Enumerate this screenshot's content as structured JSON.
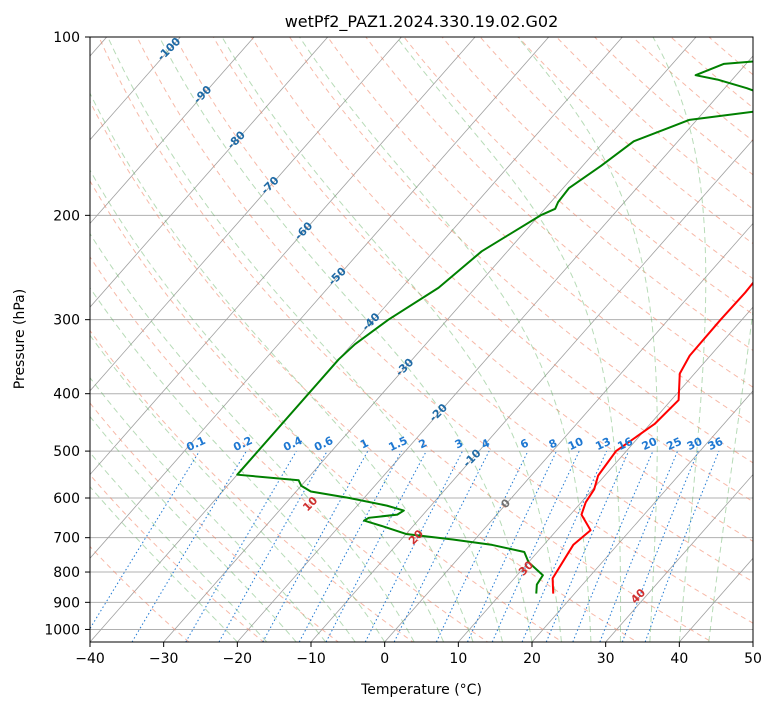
{
  "chart_data": {
    "type": "line",
    "title": "wetPf2_PAZ1.2024.330.19.02.G02",
    "xlabel": "Temperature (°C)",
    "ylabel": "Pressure (hPa)",
    "xlim": [
      -40,
      50
    ],
    "ylim": [
      1050,
      100
    ],
    "y_scale": "log",
    "grid": true,
    "x_ticks": [
      "−40",
      "−30",
      "−20",
      "−10",
      "0",
      "10",
      "20",
      "30",
      "40",
      "50"
    ],
    "x_tick_values": [
      -40,
      -30,
      -20,
      -10,
      0,
      10,
      20,
      30,
      40,
      50
    ],
    "y_ticks": [
      "100",
      "200",
      "300",
      "400",
      "500",
      "600",
      "700",
      "800",
      "900",
      "1000"
    ],
    "y_tick_values": [
      100,
      200,
      300,
      400,
      500,
      600,
      700,
      800,
      900,
      1000
    ],
    "colors": {
      "temperature": "#ff0000",
      "dewpoint": "#008000",
      "isotherm": "#a0a0a0",
      "dry_adiabat": "#f08060",
      "moist_adiabat": "#60b060",
      "mixing_ratio": "#1e78d2",
      "isotherm_label": "#1f6aa5",
      "dry_label": "#d03030",
      "zero_label": "#707070"
    },
    "series": [
      {
        "name": "temperature",
        "values": [
          {
            "p": 870,
            "t": 17.1
          },
          {
            "p": 820,
            "t": 15.2
          },
          {
            "p": 760,
            "t": 14.5
          },
          {
            "p": 720,
            "t": 14.0
          },
          {
            "p": 680,
            "t": 14.6
          },
          {
            "p": 640,
            "t": 11.5
          },
          {
            "p": 610,
            "t": 10.6
          },
          {
            "p": 580,
            "t": 10.2
          },
          {
            "p": 550,
            "t": 9.1
          },
          {
            "p": 500,
            "t": 8.6
          },
          {
            "p": 450,
            "t": 10.6
          },
          {
            "p": 410,
            "t": 11.0
          },
          {
            "p": 370,
            "t": 8.0
          },
          {
            "p": 345,
            "t": 7.2
          },
          {
            "p": 300,
            "t": 7.1
          },
          {
            "p": 270,
            "t": 7.2
          },
          {
            "p": 240,
            "t": 6.9
          },
          {
            "p": 215,
            "t": 6.4
          },
          {
            "p": 200,
            "t": 5.8
          },
          {
            "p": 185,
            "t": 6.3
          },
          {
            "p": 165,
            "t": 7.3
          },
          {
            "p": 150,
            "t": 8.5
          },
          {
            "p": 138,
            "t": 10.2
          },
          {
            "p": 128,
            "t": 12.4
          },
          {
            "p": 118,
            "t": 16.2
          },
          {
            "p": 110,
            "t": 17.7
          },
          {
            "p": 100,
            "t": 19.0
          }
        ]
      },
      {
        "name": "dewpoint",
        "values": [
          {
            "p": 870,
            "t": 14.8
          },
          {
            "p": 840,
            "t": 13.8
          },
          {
            "p": 810,
            "t": 13.5
          },
          {
            "p": 770,
            "t": 10.0
          },
          {
            "p": 740,
            "t": 8.2
          },
          {
            "p": 720,
            "t": 3.0
          },
          {
            "p": 705,
            "t": -3.0
          },
          {
            "p": 690,
            "t": -10.0
          },
          {
            "p": 670,
            "t": -14.0
          },
          {
            "p": 655,
            "t": -17.3
          },
          {
            "p": 648,
            "t": -17.0
          },
          {
            "p": 640,
            "t": -13.5
          },
          {
            "p": 630,
            "t": -13.1
          },
          {
            "p": 618,
            "t": -16.0
          },
          {
            "p": 600,
            "t": -22.0
          },
          {
            "p": 585,
            "t": -28.0
          },
          {
            "p": 572,
            "t": -30.0
          },
          {
            "p": 560,
            "t": -31.0
          },
          {
            "p": 548,
            "t": -40.0
          },
          {
            "p": 350,
            "t": -40.0
          },
          {
            "p": 330,
            "t": -39.6
          },
          {
            "p": 300,
            "t": -38.0
          },
          {
            "p": 265,
            "t": -35.0
          },
          {
            "p": 230,
            "t": -33.5
          },
          {
            "p": 200,
            "t": -29.8
          },
          {
            "p": 195,
            "t": -28.6
          },
          {
            "p": 190,
            "t": -29.0
          },
          {
            "p": 180,
            "t": -29.2
          },
          {
            "p": 165,
            "t": -27.5
          },
          {
            "p": 150,
            "t": -26.0
          },
          {
            "p": 138,
            "t": -21.0
          },
          {
            "p": 133,
            "t": -12.0
          },
          {
            "p": 127,
            "t": -12.0
          },
          {
            "p": 122,
            "t": -17.0
          },
          {
            "p": 118,
            "t": -22.0
          },
          {
            "p": 116,
            "t": -25.5
          },
          {
            "p": 111,
            "t": -23.0
          },
          {
            "p": 108,
            "t": -12.0
          },
          {
            "p": 104,
            "t": -3.0
          },
          {
            "p": 100,
            "t": 0.1
          }
        ]
      }
    ],
    "isotherm_labels": [
      "-100",
      "-90",
      "-80",
      "-70",
      "-60",
      "-50",
      "-40",
      "-30",
      "-20",
      "-10",
      "0"
    ],
    "isotherm_label_values": [
      -100,
      -90,
      -80,
      -70,
      -60,
      -50,
      -40,
      -30,
      -20,
      -10,
      0
    ],
    "mixing_ratio_labels": [
      "0.1",
      "0.2",
      "0.4",
      "0.6",
      "1",
      "1.5",
      "2",
      "3",
      "4",
      "6",
      "8",
      "10",
      "13",
      "16",
      "20",
      "25",
      "30",
      "36"
    ],
    "mixing_ratio_values": [
      0.1,
      0.2,
      0.4,
      0.6,
      1,
      1.5,
      2,
      3,
      4,
      6,
      8,
      10,
      13,
      16,
      20,
      25,
      30,
      36
    ],
    "dry_adiabat_labels": [
      "10",
      "20",
      "30",
      "40"
    ],
    "dry_adiabat_label_values": [
      10,
      20,
      30,
      40
    ]
  }
}
